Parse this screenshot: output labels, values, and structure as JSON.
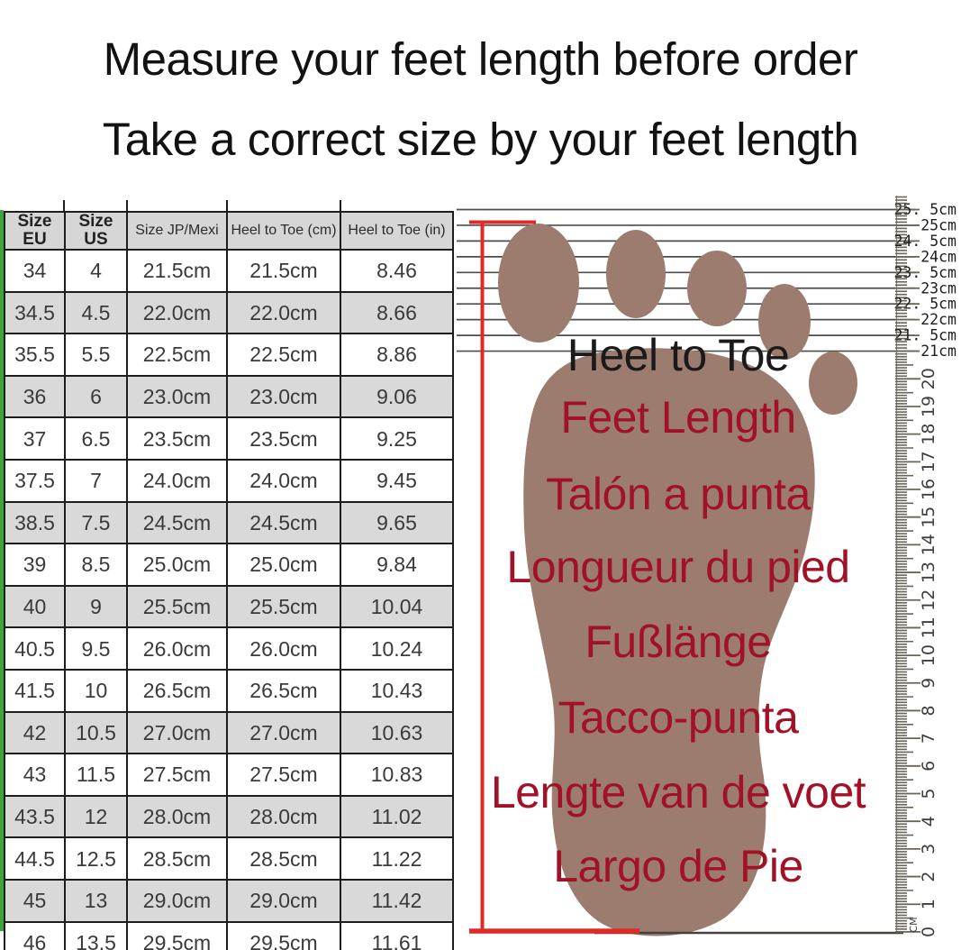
{
  "page": {
    "title_line1": "Measure your feet length before order",
    "title_line2": "Take a correct size by your feet length"
  },
  "size_table": {
    "headers": [
      "Size EU",
      "Size US",
      "Size JP/Mexi",
      "Heel to Toe (cm)",
      "Heel to Toe (in)"
    ],
    "rows": [
      [
        "34",
        "4",
        "21.5cm",
        "21.5cm",
        "8.46"
      ],
      [
        "34.5",
        "4.5",
        "22.0cm",
        "22.0cm",
        "8.66"
      ],
      [
        "35.5",
        "5.5",
        "22.5cm",
        "22.5cm",
        "8.86"
      ],
      [
        "36",
        "6",
        "23.0cm",
        "23.0cm",
        "9.06"
      ],
      [
        "37",
        "6.5",
        "23.5cm",
        "23.5cm",
        "9.25"
      ],
      [
        "37.5",
        "7",
        "24.0cm",
        "24.0cm",
        "9.45"
      ],
      [
        "38.5",
        "7.5",
        "24.5cm",
        "24.5cm",
        "9.65"
      ],
      [
        "39",
        "8.5",
        "25.0cm",
        "25.0cm",
        "9.84"
      ],
      [
        "40",
        "9",
        "25.5cm",
        "25.5cm",
        "10.04"
      ],
      [
        "40.5",
        "9.5",
        "26.0cm",
        "26.0cm",
        "10.24"
      ],
      [
        "41.5",
        "10",
        "26.5cm",
        "26.5cm",
        "10.43"
      ],
      [
        "42",
        "10.5",
        "27.0cm",
        "27.0cm",
        "10.63"
      ],
      [
        "43",
        "11.5",
        "27.5cm",
        "27.5cm",
        "10.83"
      ],
      [
        "43.5",
        "12",
        "28.0cm",
        "28.0cm",
        "11.02"
      ],
      [
        "44.5",
        "12.5",
        "28.5cm",
        "28.5cm",
        "11.22"
      ],
      [
        "45",
        "13",
        "29.0cm",
        "29.0cm",
        "11.42"
      ],
      [
        "46",
        "13.5",
        "29.5cm",
        "29.5cm",
        "11.61"
      ]
    ],
    "shaded_row_indexes": [
      1,
      3,
      6,
      8,
      11,
      13,
      15
    ]
  },
  "diagram": {
    "labels": [
      {
        "text": "Heel to Toe",
        "color": "#1a1a1a"
      },
      {
        "text": "Feet Length",
        "color": "#a11226"
      },
      {
        "text": "Talón a punta",
        "color": "#a11226"
      },
      {
        "text": "Longueur du pied",
        "color": "#a11226"
      },
      {
        "text": "Fußlänge",
        "color": "#a11226"
      },
      {
        "text": "Tacco-punta",
        "color": "#a11226"
      },
      {
        "text": "Lengte van de voet",
        "color": "#a11226"
      },
      {
        "text": "Largo de Pie",
        "color": "#a11226"
      }
    ]
  },
  "ruler": {
    "cm_labels": [
      "25. 5cm",
      "25cm",
      "24. 5cm",
      "24cm",
      "23. 5cm",
      "23cm",
      "22. 5cm",
      "22cm",
      "21. 5cm",
      "21cm"
    ],
    "numbers": [
      "20",
      "19",
      "18",
      "17",
      "16",
      "15",
      "14",
      "13",
      "12",
      "11",
      "10",
      "9",
      "8",
      "7",
      "6",
      "5",
      "4",
      "3",
      "2",
      "1",
      "0"
    ],
    "unit_label": "CM"
  },
  "colors": {
    "title_text": "#121212",
    "green_strip": "#3fa43c",
    "table_border": "#1d1d1d",
    "table_stripe": "#d9d9d9",
    "table_header_bg": "#d6d6d6",
    "table_text": "#3a3a3a",
    "footprint": "#9b7c6e",
    "diagram_line": "#4c4c4c",
    "marker_red": "#df2a26",
    "label_red": "#a11226",
    "ruler_tick": "#6b6459",
    "ruler_text": "#3e3e3e",
    "cm_label_text": "#1d1d1d",
    "bottom_line": "#44403c"
  }
}
